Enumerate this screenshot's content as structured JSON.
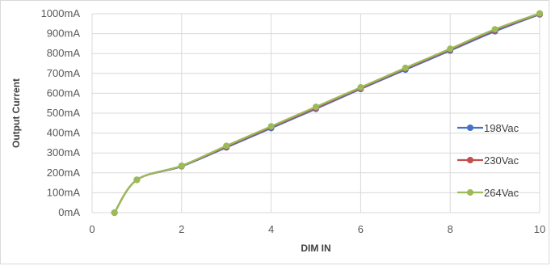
{
  "chart_data": {
    "type": "line",
    "title": "",
    "xlabel": "DIM IN",
    "ylabel": "Output Current",
    "xlim": [
      0,
      10
    ],
    "ylim": [
      0,
      1000
    ],
    "x_ticks": [
      0,
      2,
      4,
      6,
      8,
      10
    ],
    "y_ticks": [
      0,
      100,
      200,
      300,
      400,
      500,
      600,
      700,
      800,
      900,
      1000
    ],
    "y_tick_labels": [
      "0mA",
      "100mA",
      "200mA",
      "300mA",
      "400mA",
      "500mA",
      "600mA",
      "700mA",
      "800mA",
      "900mA",
      "1000mA"
    ],
    "grid": true,
    "legend_position": "right",
    "series": [
      {
        "name": "198Vac",
        "color": "#4472c4",
        "x": [
          0.5,
          1,
          2,
          3,
          4,
          5,
          6,
          7,
          8,
          9,
          10
        ],
        "values": [
          0,
          165,
          233,
          328,
          425,
          522,
          622,
          719,
          815,
          912,
          997
        ]
      },
      {
        "name": "230Vac",
        "color": "#c0504d",
        "x": [
          0.5,
          1,
          2,
          3,
          4,
          5,
          6,
          7,
          8,
          9,
          10
        ],
        "values": [
          0,
          165,
          235,
          332,
          430,
          527,
          626,
          724,
          820,
          918,
          1000
        ]
      },
      {
        "name": "264Vac",
        "color": "#9bbb59",
        "x": [
          0.5,
          1,
          2,
          3,
          4,
          5,
          6,
          7,
          8,
          9,
          10
        ],
        "values": [
          0,
          165,
          236,
          336,
          434,
          532,
          630,
          728,
          824,
          922,
          1002
        ]
      }
    ]
  }
}
